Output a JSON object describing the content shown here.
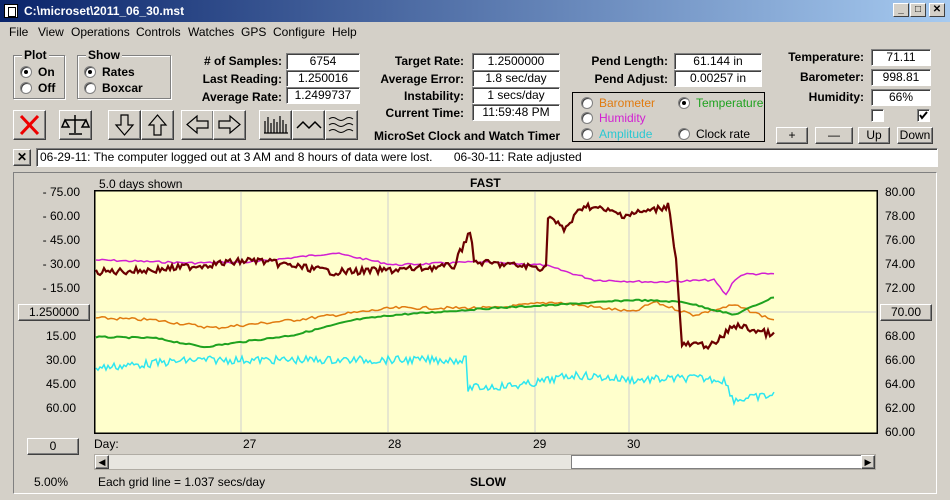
{
  "window": {
    "title": "C:\\microset\\2011_06_30.mst"
  },
  "menu": [
    "File",
    "View",
    "Operations",
    "Controls",
    "Watches",
    "GPS",
    "Configure",
    "Help"
  ],
  "plot_group": {
    "label": "Plot",
    "on": "On",
    "off": "Off"
  },
  "show_group": {
    "label": "Show",
    "rates": "Rates",
    "boxcar": "Boxcar"
  },
  "stats": {
    "samples_label": "# of Samples:",
    "samples": "6754",
    "last_label": "Last Reading:",
    "last": "1.250016",
    "avg_label": "Average Rate:",
    "avg": "1.2499737",
    "target_label": "Target Rate:",
    "target": "1.2500000",
    "err_label": "Average Error:",
    "err": "1.8 sec/day",
    "inst_label": "Instability:",
    "inst": "1 secs/day",
    "time_label": "Current Time:",
    "time": "11:59:48 PM",
    "pend_len_label": "Pend Length:",
    "pend_len": "61.144 in",
    "pend_adj_label": "Pend Adjust:",
    "pend_adj": "0.00257 in",
    "temp_label": "Temperature:",
    "temp": "71.11",
    "baro_label": "Barometer:",
    "baro": "998.81",
    "hum_label": "Humidity:",
    "hum": "66%"
  },
  "app_title": "MicroSet Clock and Watch Timer",
  "sensor_options": {
    "barometer": "Barometer",
    "temperature": "Temperature",
    "humidity": "Humidity",
    "amplitude": "Amplitude",
    "clock_rate": "Clock rate"
  },
  "sensor_buttons": {
    "plus": "+",
    "minus": "—",
    "up": "Up",
    "down": "Down"
  },
  "notes": {
    "note1": "06-29-11: The computer logged out at 3 AM and 8 hours of data were lost.",
    "note2": "06-30-11: Rate adjusted"
  },
  "plot": {
    "days_shown": "5.0 days shown",
    "fast": "FAST",
    "slow": "SLOW",
    "center_rate": "1.250000",
    "center_temp": "70.00",
    "day_prefix": "Day:",
    "zoom_button": "0",
    "zoom_percent": "5.00%",
    "grid_note": "Each grid line = 1.037 secs/day",
    "left_ticks": [
      "- 75.00",
      "- 60.00",
      "- 45.00",
      "- 30.00",
      "- 15.00",
      "15.00",
      "30.00",
      "45.00",
      "60.00"
    ],
    "right_ticks": [
      "80.00",
      "78.00",
      "76.00",
      "74.00",
      "72.00",
      "68.00",
      "66.00",
      "64.00",
      "62.00",
      "60.00"
    ],
    "days": [
      "27",
      "28",
      "29",
      "30"
    ]
  },
  "colors": {
    "rate": "#6b0000",
    "temperature": "#1fa21f",
    "barometer": "#e07b10",
    "humidity": "#d21fd2",
    "amplitude": "#2de6f0",
    "plot_bg": "#ffffcc"
  }
}
